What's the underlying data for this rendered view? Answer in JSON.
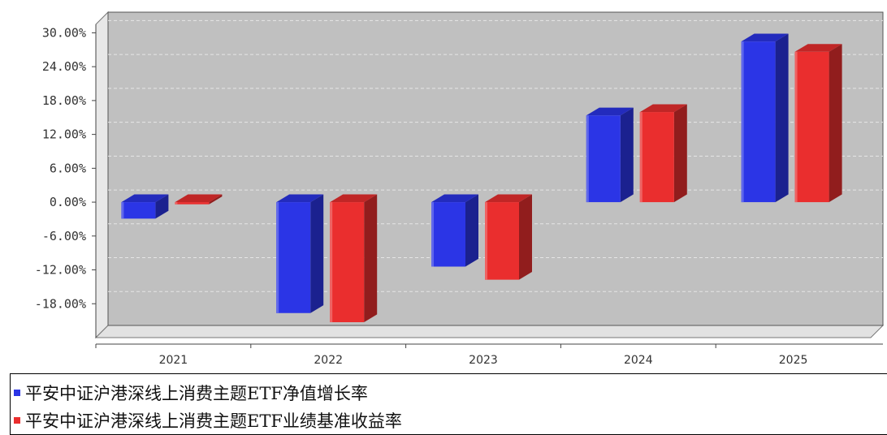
{
  "chart_data": {
    "type": "bar",
    "categories": [
      "2021",
      "2022",
      "2023",
      "2024",
      "2025"
    ],
    "series": [
      {
        "name": "平安中证沪港深线上消费主题ETF净值增长率",
        "color": "#2b35e6",
        "values": [
          -2.92,
          -19.65,
          -11.42,
          15.36,
          28.46
        ]
      },
      {
        "name": "平安中证沪港深线上消费主题ETF业绩基准收益率",
        "color": "#ea2e2e",
        "values": [
          -0.38,
          -21.27,
          -13.74,
          15.96,
          26.64
        ]
      }
    ],
    "yticks": [
      "30.00%",
      "24.00%",
      "18.00%",
      "12.00%",
      "6.00%",
      "0.00%",
      "-6.00%",
      "-12.00%",
      "-18.00%"
    ],
    "ylim": [
      -24,
      31.5
    ],
    "grid": true,
    "legend": "bottom",
    "plot_bg": "#c0c0c0"
  }
}
